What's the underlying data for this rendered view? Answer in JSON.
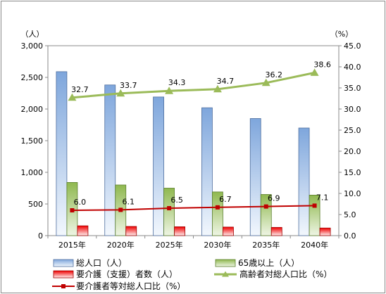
{
  "chart_data": {
    "type": "bar",
    "categories": [
      "2015年",
      "2020年",
      "2025年",
      "2030年",
      "2035年",
      "2040年"
    ],
    "left_axis": {
      "unit_label": "（人）",
      "ylim": [
        0,
        3000
      ],
      "ticks": [
        "0",
        "500",
        "1,000",
        "1,500",
        "2,000",
        "2,500",
        "3,000"
      ],
      "tick_values": [
        0,
        500,
        1000,
        1500,
        2000,
        2500,
        3000
      ]
    },
    "right_axis": {
      "unit_label": "（%）",
      "ylim": [
        0,
        45
      ],
      "ticks": [
        "0.0",
        "5.0",
        "10.0",
        "15.0",
        "20.0",
        "25.0",
        "30.0",
        "35.0",
        "40.0",
        "45.0"
      ],
      "tick_values": [
        0,
        5,
        10,
        15,
        20,
        25,
        30,
        35,
        40,
        45
      ]
    },
    "series": [
      {
        "name": "総人口（人）",
        "type": "bar",
        "axis": "left",
        "color": "#8db4e2",
        "values": [
          2590,
          2380,
          2190,
          2020,
          1850,
          1700
        ]
      },
      {
        "name": "65歳以上（人）",
        "type": "bar",
        "axis": "left",
        "color": "#9bbb59",
        "values": [
          840,
          800,
          750,
          690,
          650,
          640
        ]
      },
      {
        "name": "要介護（支援）者数（人）",
        "type": "bar",
        "axis": "left",
        "color": "#ff0000",
        "values": [
          155,
          145,
          140,
          135,
          130,
          120
        ]
      },
      {
        "name": "高齢者対総人口比（%）",
        "type": "line",
        "axis": "right",
        "color": "#9bbb59",
        "marker": "triangle",
        "values": [
          32.7,
          33.7,
          34.3,
          34.7,
          36.2,
          38.6
        ],
        "labels": [
          "32.7",
          "33.7",
          "34.3",
          "34.7",
          "36.2",
          "38.6"
        ]
      },
      {
        "name": "要介護者等対総人口比（%）",
        "type": "line",
        "axis": "right",
        "color": "#c00000",
        "marker": "square",
        "values": [
          6.0,
          6.1,
          6.5,
          6.7,
          6.9,
          7.1
        ],
        "labels": [
          "6.0",
          "6.1",
          "6.5",
          "6.7",
          "6.9",
          "7.1"
        ]
      }
    ],
    "grid": false,
    "legend": "bottom"
  }
}
